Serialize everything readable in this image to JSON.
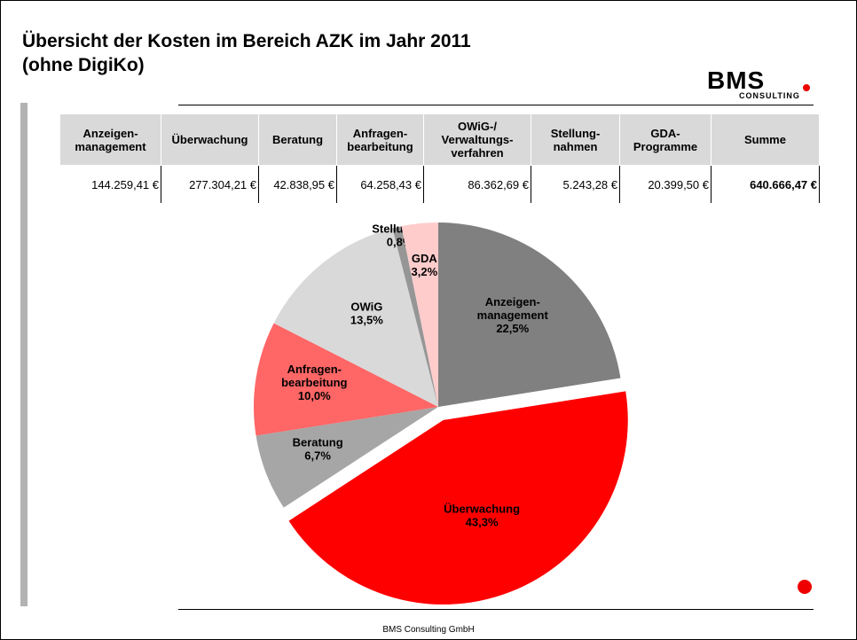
{
  "header": {
    "title": "Übersicht der Kosten im Bereich AZK im Jahr 2011",
    "subtitle": "(ohne DigiKo)",
    "logo": "BMS",
    "logo_sub": "CONSULTING"
  },
  "table": {
    "header": [
      "Anzeigen-\nmanagement",
      "Überwachung",
      "Beratung",
      "Anfragen-\nbearbeitung",
      "OWiG-/\nVerwaltungs-\nverfahren",
      "Stellung-\nnahmen",
      "GDA-\nProgramme",
      "Summe"
    ],
    "rows": [
      [
        "144.259,41 €",
        "277.304,21 €",
        "42.838,95 €",
        "64.258,43 €",
        "86.362,69 €",
        "5.243,28 €",
        "20.399,50 €",
        "640.666,47 €"
      ]
    ]
  },
  "chart_data": {
    "type": "pie",
    "categories": [
      "Anzeigen-\nmanagement",
      "Überwachung",
      "Beratung",
      "Anfragen-\nbearbeitung",
      "OWiG",
      "Stellungn.",
      "GDA"
    ],
    "values": [
      22.5,
      43.3,
      6.7,
      10.0,
      13.5,
      0.8,
      3.2
    ],
    "value_labels": [
      "22,5%",
      "43,3%",
      "6,7%",
      "10,0%",
      "13,5%",
      "0,8%",
      "3,2%"
    ],
    "colors": [
      "#808080",
      "#ff0000",
      "#a6a6a6",
      "#ff6666",
      "#d9d9d9",
      "#969696",
      "#ffcccc"
    ],
    "exploded": [
      1
    ]
  },
  "footer": "BMS Consulting GmbH"
}
